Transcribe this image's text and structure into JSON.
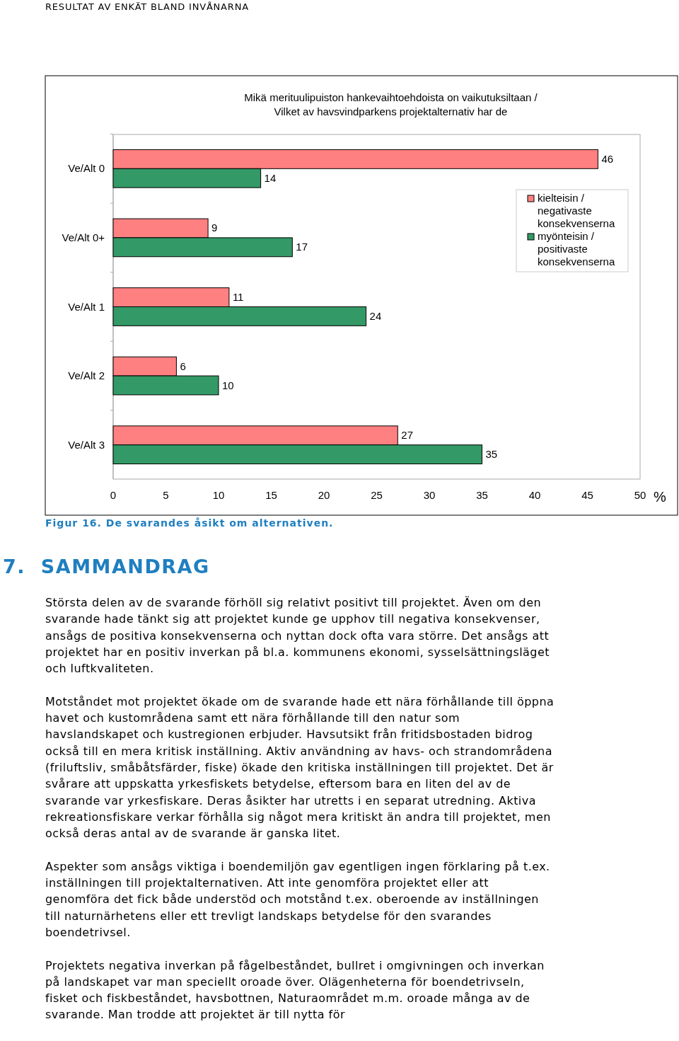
{
  "chart_data": {
    "type": "bar",
    "orientation": "horizontal",
    "title": "Mikä merituulipuiston hankevaihtoehdoista on vaikutuksiltaan /\nVilket av havsvindparkens projektalternativ har de",
    "xlabel": "%",
    "categories": [
      "Ve/Alt 0",
      "Ve/Alt 0+",
      "Ve/Alt 1",
      "Ve/Alt 2",
      "Ve/Alt 3"
    ],
    "series": [
      {
        "name": "kielteisin / negativaste konsekvenserna",
        "color": "#ff8080",
        "values": [
          46,
          9,
          11,
          6,
          27
        ]
      },
      {
        "name": "myönteisin / positivaste konsekvenserna",
        "color": "#339966",
        "values": [
          14,
          17,
          24,
          10,
          35
        ]
      }
    ],
    "xlim": [
      0,
      50
    ],
    "xticks": [
      0,
      5,
      10,
      15,
      20,
      25,
      30,
      35,
      40,
      45,
      50
    ],
    "grid": false,
    "legend": "top right",
    "data_labels": true,
    "annotations": [
      "RESULTAT AV ENKÄT BLAND INVÅNARNA",
      "Figur 16. De svarandes åsikt om alternativen.",
      "7.  SAMMANDRAG",
      "Största delen av de svarande förhöll sig relativt positivt till projektet. Även om den svarande hade tänkt sig att projektet kunde ge upphov till negativa konsekvenser, ansågs de positiva konsekvenserna och nyttan dock ofta vara större. Det ansågs att projektet har en positiv inverkan på bl.a. kommunens ekonomi, sysselsättningsläget och luftkvaliteten.",
      "Motståndet mot projektet ökade om de svarande hade ett nära förhållande till öppna havet och kustområdena samt ett nära förhållande till den natur som havslandskapet och kustregionen erbjuder. Havsutsikt från fritidsbostaden bidrog också till en mera kritisk inställning. Aktiv användning av havs- och strandområdena (friluftsliv, småbåtsfärder, fiske) ökade den kritiska inställningen till projektet. Det är svårare att uppskatta yrkesfiskets betydelse, eftersom bara en liten del av de svarande var yrkesfiskare. Deras åsikter har utretts i en separat utredning. Aktiva rekreationsfiskare verkar förhålla sig något mera kritiskt än andra till projektet, men också deras antal av de svarande är ganska litet.",
      "Aspekter som ansågs viktiga i boendemiljön gav egentligen ingen förklaring på t.ex. inställningen till projektalternativen. Att inte genomföra projektet eller att genomföra det fick både understöd och motstånd t.ex. oberoende av inställningen till naturnärhetens eller ett trevligt landskaps betydelse för den svarandes boendetrivsel.",
      "Projektets negativa inverkan på fågelbeståndet, bullret i omgivningen och inverkan på landskapet var man speciellt oroade över. Olägenheterna för boendetrivseln, fisket och fiskbeståndet, havsbottnen, Naturaområdet m.m. oroade många av de svarande. Man trodde att projektet är till nytta för"
    ]
  }
}
